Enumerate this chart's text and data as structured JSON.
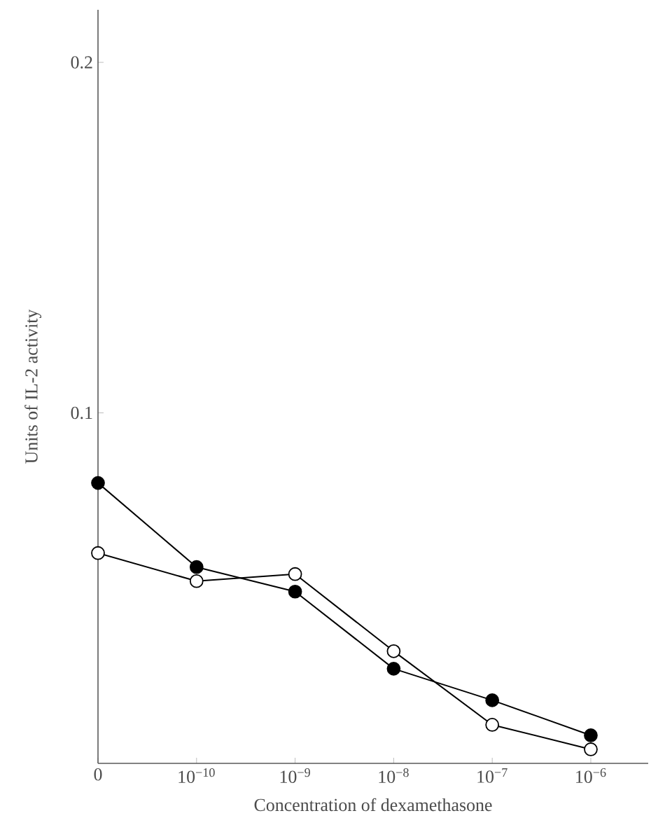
{
  "chart_data": {
    "type": "line",
    "xlabel": "Concentration of dexamethasone",
    "ylabel": "Units of IL-2 activity",
    "categories": [
      "0",
      "10$^{−10}$",
      "10$^{−9}$",
      "10$^{−8}$",
      "10$^{−7}$",
      "10$^{−6}$"
    ],
    "series": [
      {
        "color": "#000000",
        "values": [
          0.08,
          0.056,
          0.049,
          0.027,
          0.018,
          0.008
        ]
      },
      {
        "color": "#000000",
        "values": [
          0.06,
          0.052,
          0.054,
          0.032,
          0.011,
          0.004
        ]
      }
    ],
    "ylim": [
      0,
      0.215
    ],
    "yticks": [
      0.1,
      0.2
    ],
    "marker": "circle",
    "line_style": "solid",
    "grid": false
  }
}
